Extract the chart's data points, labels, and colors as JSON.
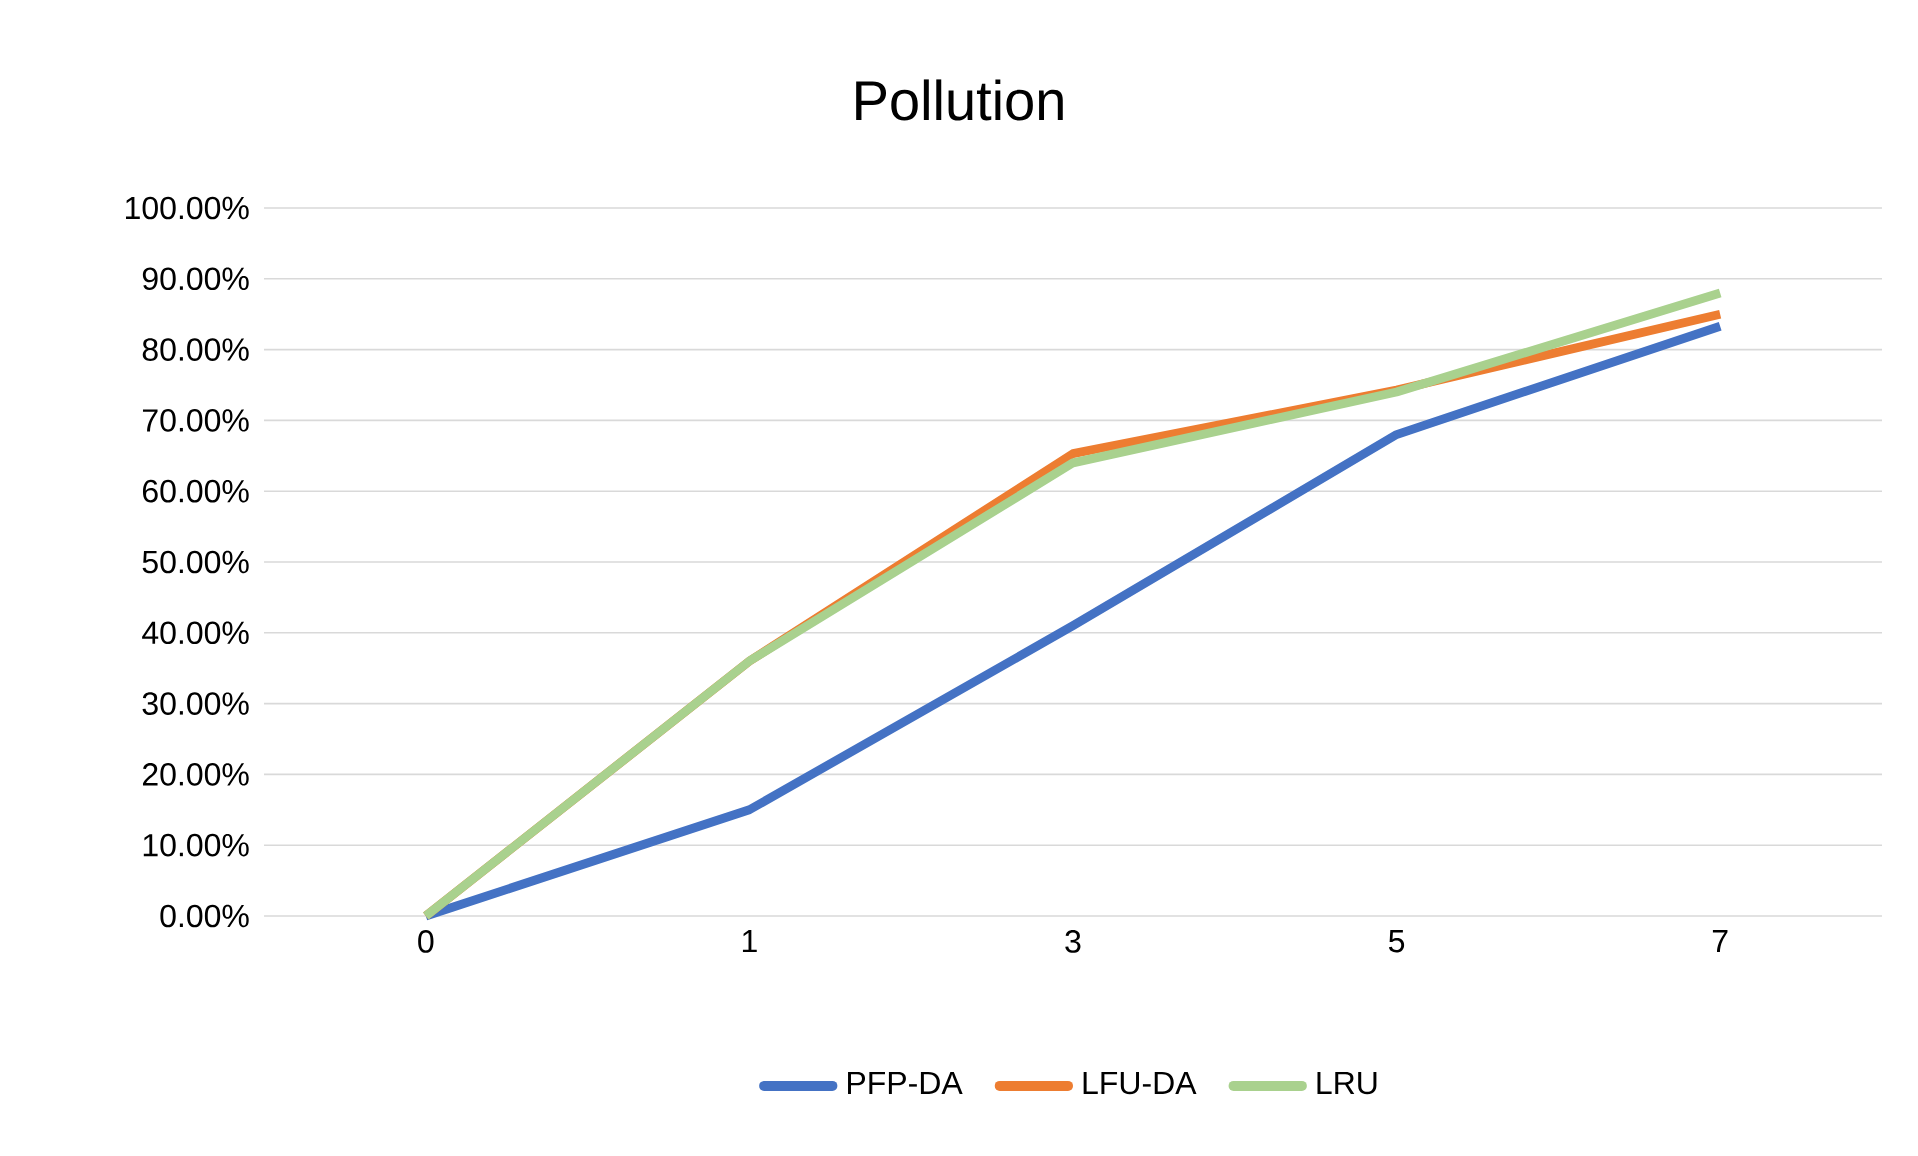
{
  "chart_data": {
    "type": "line",
    "title": "Pollution",
    "categories": [
      "0",
      "1",
      "3",
      "5",
      "7"
    ],
    "series": [
      {
        "name": "PFP-DA",
        "color": "#4472c4",
        "values": [
          0,
          15,
          41,
          68,
          83.3
        ]
      },
      {
        "name": "LFU-DA",
        "color": "#ed7d31",
        "values": [
          0,
          36,
          65.3,
          74.3,
          85
        ]
      },
      {
        "name": "LRU",
        "color": "#a9d18e",
        "values": [
          0,
          36,
          64,
          74,
          88
        ]
      }
    ],
    "ylim": [
      0,
      100
    ],
    "yticks": [
      {
        "value": 0,
        "label": "0.00%"
      },
      {
        "value": 10,
        "label": "10.00%"
      },
      {
        "value": 20,
        "label": "20.00%"
      },
      {
        "value": 30,
        "label": "30.00%"
      },
      {
        "value": 40,
        "label": "40.00%"
      },
      {
        "value": 50,
        "label": "50.00%"
      },
      {
        "value": 60,
        "label": "60.00%"
      },
      {
        "value": 70,
        "label": "70.00%"
      },
      {
        "value": 80,
        "label": "80.00%"
      },
      {
        "value": 90,
        "label": "90.00%"
      },
      {
        "value": 100,
        "label": "100.00%"
      }
    ],
    "grid": "y",
    "legend": "bottom",
    "marker": "none",
    "line_style": "solid"
  }
}
